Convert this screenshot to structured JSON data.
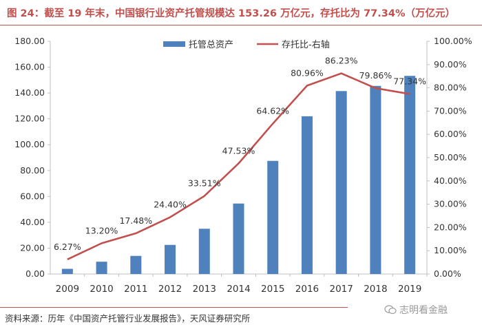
{
  "header": {
    "title": "图 24：截至 19 年末，中国银行业资产托管规模达 153.26 万亿元，存托比为 77.34%（万亿元）"
  },
  "footer": {
    "source": "资料来源：历年《中国资产托管行业发展报告》，天风证券研究所",
    "watermark": "志明看金融"
  },
  "colors": {
    "bar": "#4f81bd",
    "line": "#c0504d",
    "accent": "#c0504d"
  },
  "chart_data": {
    "type": "bar",
    "title": "截至 19 年末，中国银行业资产托管规模达 153.26 万亿元，存托比为 77.34%（万亿元）",
    "categories": [
      "2009",
      "2010",
      "2011",
      "2012",
      "2013",
      "2014",
      "2015",
      "2016",
      "2017",
      "2018",
      "2019"
    ],
    "series": [
      {
        "name": "托管总资产",
        "type": "bar",
        "axis": "left",
        "values": [
          4.0,
          9.5,
          14.0,
          22.5,
          35.0,
          54.5,
          87.5,
          122.0,
          141.5,
          145.5,
          153.26
        ]
      },
      {
        "name": "存托比-右轴",
        "type": "line",
        "axis": "right",
        "values": [
          6.27,
          13.2,
          17.48,
          24.4,
          33.51,
          47.53,
          64.62,
          80.96,
          86.23,
          79.86,
          77.34
        ],
        "labels": [
          "6.27%",
          "13.20%",
          "17.48%",
          "24.40%",
          "33.51%",
          "47.53%",
          "64.62%",
          "80.96%",
          "86.23%",
          "79.86%",
          "77.34%"
        ]
      }
    ],
    "y_left": {
      "min": 0,
      "max": 180,
      "step": 20,
      "tick_labels": [
        "0.00",
        "20.00",
        "40.00",
        "60.00",
        "80.00",
        "100.00",
        "120.00",
        "140.00",
        "160.00",
        "180.00"
      ]
    },
    "y_right": {
      "min": 0,
      "max": 100,
      "step": 10,
      "tick_labels": [
        "0.00%",
        "10.00%",
        "20.00%",
        "30.00%",
        "40.00%",
        "50.00%",
        "60.00%",
        "70.00%",
        "80.00%",
        "90.00%",
        "100.00%"
      ]
    },
    "legend": [
      "托管总资产",
      "存托比-右轴"
    ],
    "legend_position": "top-center",
    "grid": false
  }
}
